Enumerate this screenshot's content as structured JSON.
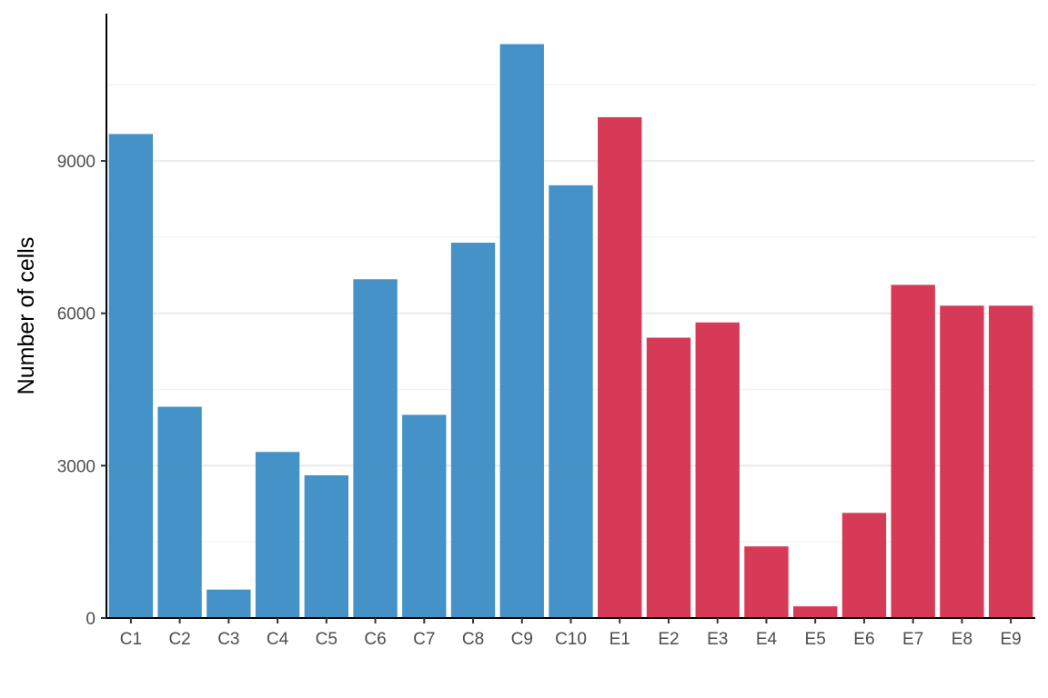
{
  "chart_data": {
    "type": "bar",
    "title": "",
    "xlabel": "",
    "ylabel": "Number of cells",
    "categories": [
      "C1",
      "C2",
      "C3",
      "C4",
      "C5",
      "C6",
      "C7",
      "C8",
      "C9",
      "C10",
      "E1",
      "E2",
      "E3",
      "E4",
      "E5",
      "E6",
      "E7",
      "E8",
      "E9"
    ],
    "values": [
      9530,
      4160,
      560,
      3270,
      2810,
      6670,
      4000,
      7390,
      11300,
      8520,
      9860,
      5520,
      5820,
      1410,
      230,
      2070,
      6560,
      6150,
      6150
    ],
    "groups": [
      "C",
      "C",
      "C",
      "C",
      "C",
      "C",
      "C",
      "C",
      "C",
      "C",
      "E",
      "E",
      "E",
      "E",
      "E",
      "E",
      "E",
      "E",
      "E"
    ],
    "group_colors": {
      "C": "#3a8cc4",
      "E": "#d42f4e"
    },
    "ylim": [
      0,
      11900
    ],
    "yticks": [
      0,
      3000,
      6000,
      9000
    ],
    "ytick_labels": [
      "0",
      "3000",
      "6000",
      "9000"
    ],
    "grid": true,
    "legend": "none"
  }
}
